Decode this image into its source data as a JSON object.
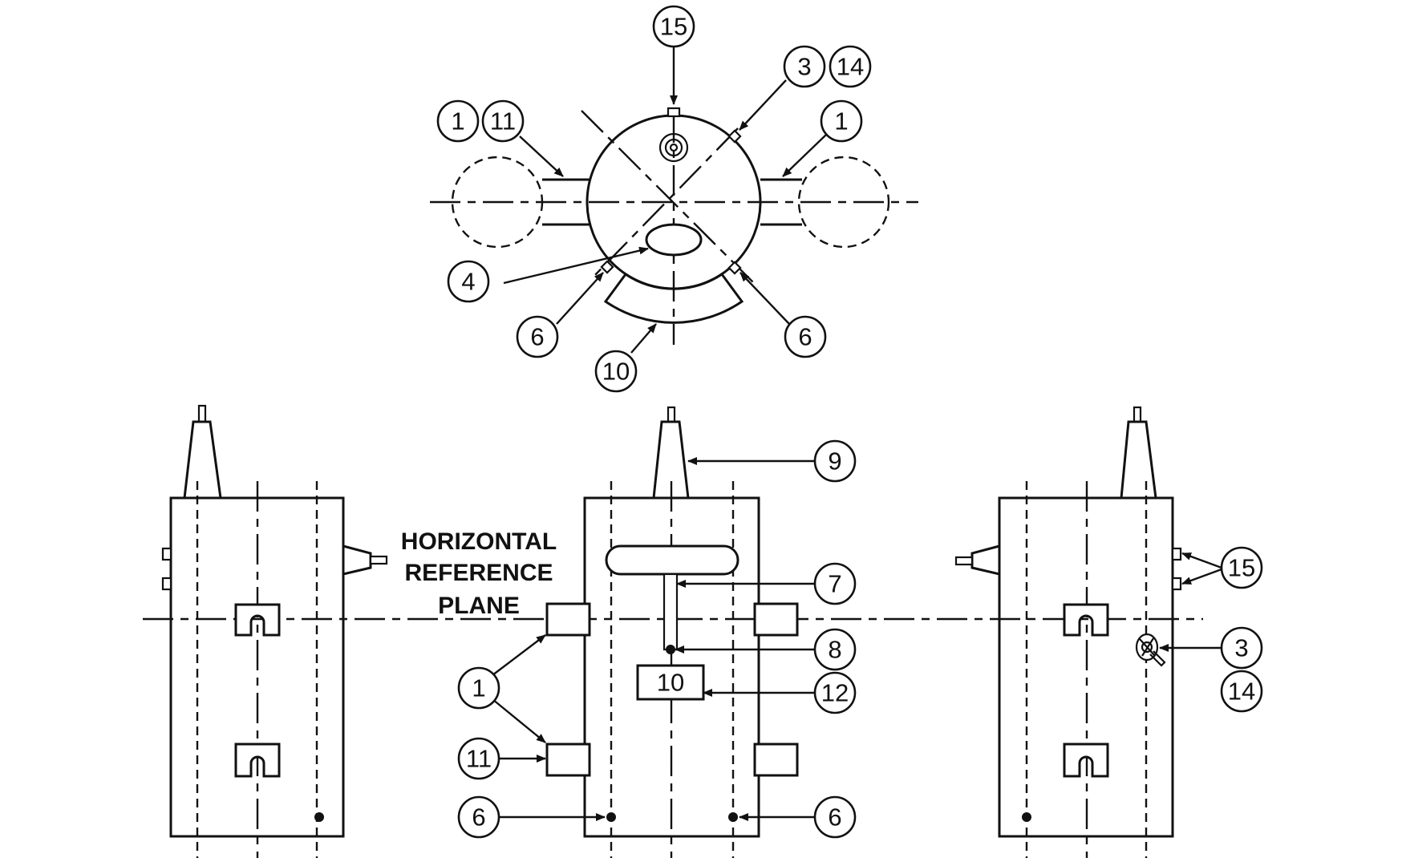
{
  "reference_plane": {
    "line1": "HORIZONTAL",
    "line2": "REFERENCE",
    "line3": "PLANE"
  },
  "plan_view_callouts": {
    "top_center": "15",
    "top_right_a": "3",
    "top_right_b": "14",
    "left_a": "1",
    "left_b": "11",
    "right": "1",
    "bottom_left": "4",
    "lower_left": "6",
    "lower_right": "6",
    "bottom": "10"
  },
  "front_view_callouts": {
    "cone": "9",
    "slot": "7",
    "probe_tip": "8",
    "box_label": "10",
    "box_callout": "12",
    "left_nozzles": "1",
    "lower_nozzle": "11",
    "left_dot": "6",
    "right_dot": "6"
  },
  "side_view_callouts": {
    "small_ports": "15",
    "fitting_a": "3",
    "fitting_b": "14"
  },
  "colors": {
    "line": "#111111",
    "background": "#ffffff"
  }
}
